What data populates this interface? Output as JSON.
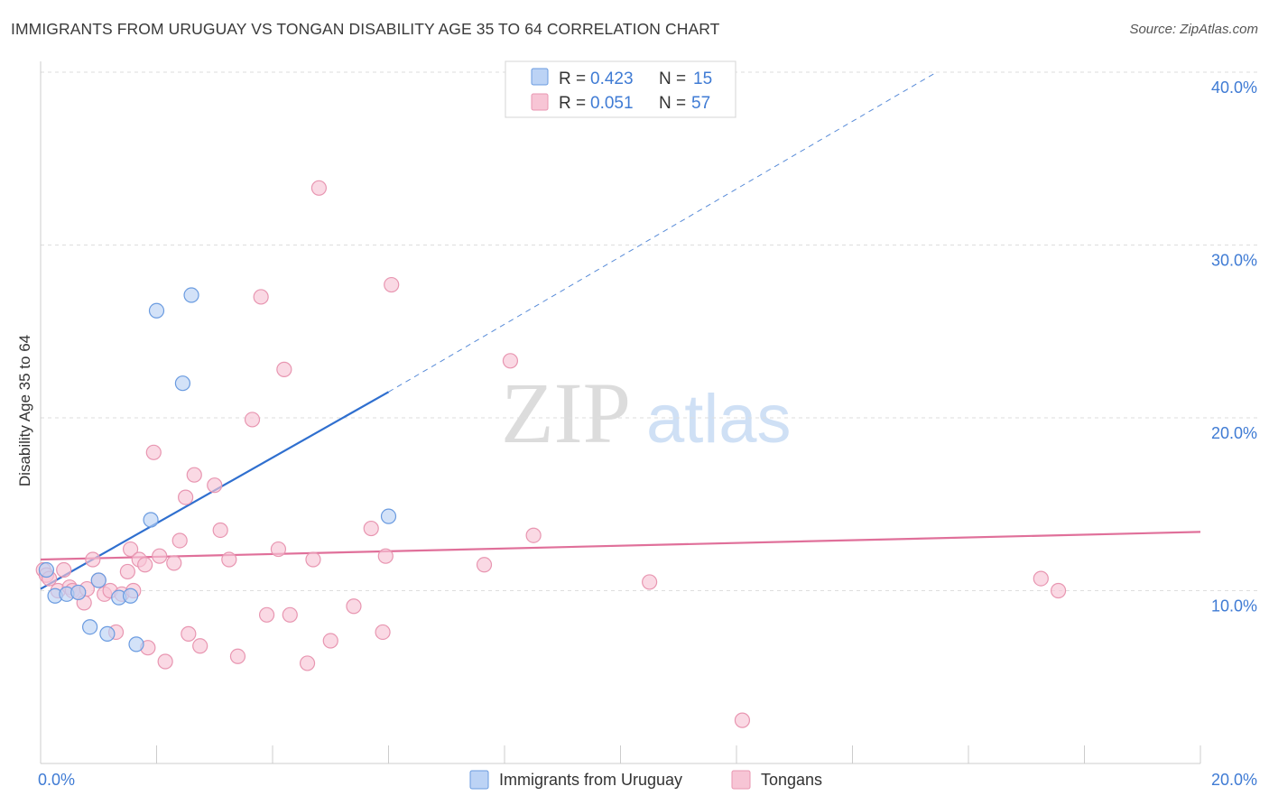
{
  "title": "IMMIGRANTS FROM URUGUAY VS TONGAN DISABILITY AGE 35 TO 64 CORRELATION CHART",
  "source": "Source: ZipAtlas.com",
  "watermark": {
    "zip": "ZIP",
    "atlas": "atlas"
  },
  "colors": {
    "blue_fill": "#bcd3f5",
    "blue_stroke": "#6a9be0",
    "blue_line": "#2f6fcf",
    "pink_fill": "#f7c5d5",
    "pink_stroke": "#e896b1",
    "pink_line": "#e0709a",
    "tick_text": "#3f7bd4",
    "grid": "#dedede"
  },
  "legend": {
    "series": [
      {
        "r_label": "R =",
        "r_value": "0.423",
        "n_label": "N =",
        "n_value": "15"
      },
      {
        "r_label": "R =",
        "r_value": "0.051",
        "n_label": "N =",
        "n_value": "57"
      }
    ]
  },
  "bottom_legend": [
    "Immigrants from Uruguay",
    "Tongans"
  ],
  "chart_data": {
    "type": "scatter",
    "xlabel": "",
    "ylabel": "Disability Age 35 to 64",
    "xlim": [
      0,
      20
    ],
    "ylim": [
      0,
      40
    ],
    "x_ticks": [
      0,
      20
    ],
    "x_tick_labels": [
      "0.0%",
      "20.0%"
    ],
    "y_ticks": [
      10,
      20,
      30,
      40
    ],
    "y_tick_labels": [
      "10.0%",
      "20.0%",
      "30.0%",
      "40.0%"
    ],
    "grid": true,
    "series": [
      {
        "name": "Immigrants from Uruguay",
        "r": 0.423,
        "n": 15,
        "points": [
          [
            0.1,
            11.2
          ],
          [
            0.25,
            9.7
          ],
          [
            0.45,
            9.8
          ],
          [
            0.65,
            9.9
          ],
          [
            0.85,
            7.9
          ],
          [
            1.0,
            10.6
          ],
          [
            1.15,
            7.5
          ],
          [
            1.35,
            9.6
          ],
          [
            1.55,
            9.7
          ],
          [
            1.65,
            6.9
          ],
          [
            1.9,
            14.1
          ],
          [
            2.0,
            26.2
          ],
          [
            2.45,
            22.0
          ],
          [
            2.6,
            27.1
          ],
          [
            6.0,
            14.3
          ]
        ],
        "trend_solid": {
          "x": [
            0,
            6.0
          ],
          "y": [
            10.1,
            21.5
          ]
        },
        "trend_dashed": {
          "x": [
            6.0,
            15.4
          ],
          "y": [
            21.5,
            39.9
          ]
        }
      },
      {
        "name": "Tongans",
        "r": 0.051,
        "n": 57,
        "points": [
          [
            0.05,
            11.2
          ],
          [
            0.1,
            10.9
          ],
          [
            0.15,
            10.7
          ],
          [
            0.3,
            10.0
          ],
          [
            0.4,
            11.2
          ],
          [
            0.5,
            10.2
          ],
          [
            0.55,
            10.0
          ],
          [
            0.65,
            9.9
          ],
          [
            0.75,
            9.3
          ],
          [
            0.8,
            10.1
          ],
          [
            0.9,
            11.8
          ],
          [
            1.0,
            10.6
          ],
          [
            1.1,
            9.8
          ],
          [
            1.2,
            10.0
          ],
          [
            1.3,
            7.6
          ],
          [
            1.4,
            9.8
          ],
          [
            1.5,
            11.1
          ],
          [
            1.55,
            12.4
          ],
          [
            1.6,
            10.0
          ],
          [
            1.7,
            11.8
          ],
          [
            1.8,
            11.5
          ],
          [
            1.85,
            6.7
          ],
          [
            1.95,
            18.0
          ],
          [
            2.05,
            12.0
          ],
          [
            2.15,
            5.9
          ],
          [
            2.3,
            11.6
          ],
          [
            2.4,
            12.9
          ],
          [
            2.5,
            15.4
          ],
          [
            2.55,
            7.5
          ],
          [
            2.65,
            16.7
          ],
          [
            2.75,
            6.8
          ],
          [
            3.0,
            16.1
          ],
          [
            3.1,
            13.5
          ],
          [
            3.25,
            11.8
          ],
          [
            3.4,
            6.2
          ],
          [
            3.65,
            19.9
          ],
          [
            3.8,
            27.0
          ],
          [
            3.9,
            8.6
          ],
          [
            4.1,
            12.4
          ],
          [
            4.2,
            22.8
          ],
          [
            4.3,
            8.6
          ],
          [
            4.6,
            5.8
          ],
          [
            4.7,
            11.8
          ],
          [
            4.8,
            33.3
          ],
          [
            5.0,
            7.1
          ],
          [
            5.4,
            9.1
          ],
          [
            5.7,
            13.6
          ],
          [
            5.9,
            7.6
          ],
          [
            5.95,
            12.0
          ],
          [
            6.05,
            27.7
          ],
          [
            7.65,
            11.5
          ],
          [
            8.1,
            23.3
          ],
          [
            8.5,
            13.2
          ],
          [
            10.5,
            10.5
          ],
          [
            12.1,
            2.5
          ],
          [
            17.25,
            10.7
          ],
          [
            17.55,
            10.0
          ]
        ],
        "trend_solid": {
          "x": [
            0,
            20
          ],
          "y": [
            11.8,
            13.4
          ]
        }
      }
    ]
  }
}
